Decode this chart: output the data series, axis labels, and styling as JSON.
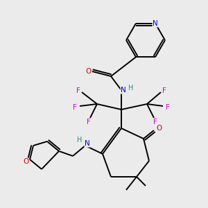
{
  "bg_color": "#ebebeb",
  "atom_colors": {
    "N": "#0000cc",
    "O": "#cc0000",
    "F": "#cc00cc",
    "H": "#228888",
    "C": "#000000"
  },
  "bond_color": "#000000"
}
